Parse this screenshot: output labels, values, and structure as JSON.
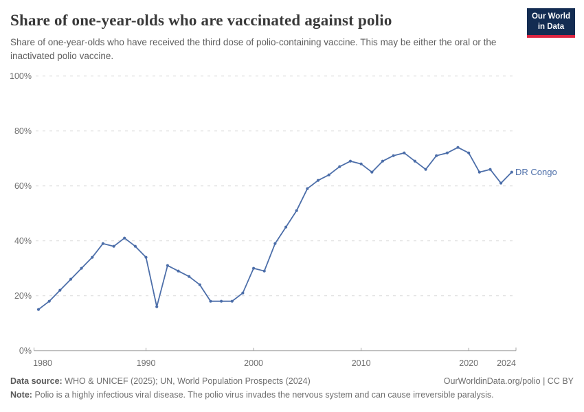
{
  "header": {
    "title": "Share of one-year-olds who are vaccinated against polio",
    "subtitle": "Share of one-year-olds who have received the third dose of polio-containing vaccine. This may be either the oral or the inactivated polio vaccine.",
    "logo": {
      "line1": "Our World",
      "line2": "in Data",
      "bg_color": "#132c52",
      "accent_color": "#dc2440"
    }
  },
  "chart_data": {
    "type": "line",
    "title": "Share of one-year-olds who are vaccinated against polio",
    "xlabel": "",
    "ylabel": "",
    "xlim": [
      1980,
      2024
    ],
    "ylim": [
      0,
      100
    ],
    "grid": "horizontal-dashed",
    "legend_position": "end-of-line-label",
    "x_ticks": [
      1980,
      1990,
      2000,
      2010,
      2020,
      2024
    ],
    "y_ticks": [
      {
        "value": 0,
        "label": "0%"
      },
      {
        "value": 20,
        "label": "20%"
      },
      {
        "value": 40,
        "label": "40%"
      },
      {
        "value": 60,
        "label": "60%"
      },
      {
        "value": 80,
        "label": "80%"
      },
      {
        "value": 100,
        "label": "100%"
      }
    ],
    "series": [
      {
        "name": "DR Congo",
        "color": "#4c6ea9",
        "x": [
          1980,
          1981,
          1982,
          1983,
          1984,
          1985,
          1986,
          1987,
          1988,
          1989,
          1990,
          1991,
          1992,
          1993,
          1994,
          1995,
          1996,
          1997,
          1998,
          1999,
          2000,
          2001,
          2002,
          2003,
          2004,
          2005,
          2006,
          2007,
          2008,
          2009,
          2010,
          2011,
          2012,
          2013,
          2014,
          2015,
          2016,
          2017,
          2018,
          2019,
          2020,
          2021,
          2022,
          2023,
          2024
        ],
        "values": [
          15,
          18,
          22,
          26,
          30,
          34,
          39,
          38,
          41,
          38,
          34,
          16,
          31,
          29,
          27,
          24,
          18,
          18,
          18,
          21,
          30,
          29,
          39,
          45,
          51,
          59,
          62,
          64,
          67,
          69,
          68,
          65,
          69,
          71,
          72,
          69,
          66,
          71,
          72,
          74,
          72,
          65,
          66,
          61,
          65
        ]
      }
    ],
    "end_label": "DR Congo"
  },
  "footer": {
    "data_source_label": "Data source:",
    "data_source": "WHO & UNICEF (2025); UN, World Population Prospects (2024)",
    "link": "OurWorldinData.org/polio | CC BY",
    "note_label": "Note:",
    "note": "Polio is a highly infectious viral disease. The polio virus invades the nervous system and can cause irreversible paralysis."
  }
}
